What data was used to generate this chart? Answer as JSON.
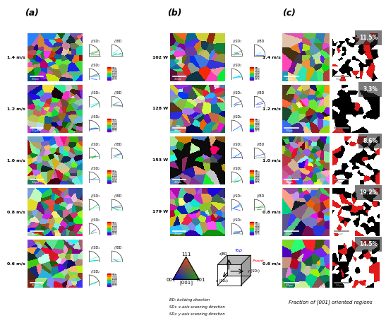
{
  "panel_a_label": "(a)",
  "panel_b_label": "(b)",
  "panel_c_label": "(c)",
  "row_labels_a": [
    "1.4 m/s",
    "1.2 m/s",
    "1.0 m/s",
    "0.8 m/s",
    "0.6 m/s"
  ],
  "row_labels_b": [
    "102 W",
    "128 W",
    "153 W",
    "179 W"
  ],
  "row_labels_c": [
    "1.4 m/s",
    "1.2 m/s",
    "1.0 m/s",
    "0.8 m/s",
    "0.6 m/s"
  ],
  "fraction_labels": [
    "11.5%",
    "3.3%",
    "8.6%",
    "19.2%",
    "14.5%"
  ],
  "bottom_labels": [
    "BD: building direction",
    "SD₁: x-axis scanning direction",
    "SD₂: y-axis scanning direction"
  ],
  "fraction_text": "Fraction of [001] oriented regions",
  "sd1_label": "//SD₁",
  "sd2_label": "//SD₂",
  "bd_label": "//BD",
  "bg_color": "#ffffff",
  "ipf_corner_labels": [
    "001",
    "101",
    "111"
  ],
  "ipf_bottom_label": "[001]",
  "cube_top_label": "Top",
  "cube_front_label": "Front",
  "cube_axis_bd": "z(BD",
  "cube_axis_sd1": "y (SD₁)",
  "cube_axis_sd2": "x (SD₂)",
  "legend_colors": [
    "#cc0000",
    "#ff6600",
    "#ffaa00",
    "#aacc00",
    "#33cc33",
    "#00cccc",
    "#0066cc",
    "#6600cc"
  ],
  "legend_vals": [
    "max",
    "3.543",
    "2.750",
    "1.500",
    "1.000",
    "0.750",
    "0.500",
    "0.375"
  ]
}
